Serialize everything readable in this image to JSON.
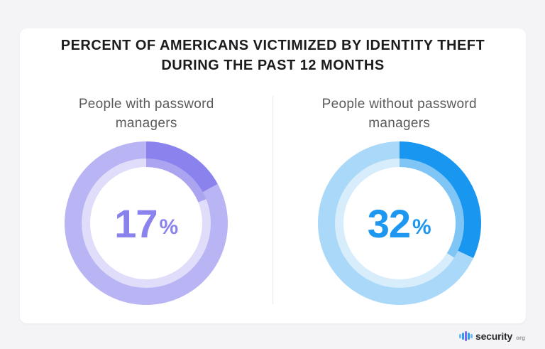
{
  "page": {
    "background_color": "#f4f4f6",
    "card_color": "#ffffff",
    "divider_color": "#e9e9eb"
  },
  "title": {
    "line1": "PERCENT OF AMERICANS VICTIMIZED BY IDENTITY THEFT",
    "line2": "DURING THE PAST 12 MONTHS"
  },
  "chart_data": {
    "type": "pie",
    "variant": "donut",
    "title": "PERCENT OF AMERICANS VICTIMIZED BY IDENTITY THEFT DURING THE PAST 12 MONTHS",
    "units": "%",
    "start_angle_deg": 0,
    "direction": "clockwise",
    "inner_highlight_extra_deg": 7,
    "legend_position": "none",
    "charts": [
      {
        "label": "People with password managers",
        "value": 17,
        "remainder": 83,
        "center_text": "17%",
        "colors": {
          "segment": "#8a83ed",
          "track": "#b9b4f3",
          "segment_inner": "#aba4f0",
          "track_inner": "#dfddfa",
          "value_text": "#8a83ed"
        }
      },
      {
        "label": "People without password managers",
        "value": 32,
        "remainder": 68,
        "center_text": "32%",
        "colors": {
          "segment": "#1996f0",
          "track": "#a9d8f8",
          "segment_inner": "#7fc5f6",
          "track_inner": "#d7edfc",
          "value_text": "#1e97f0"
        }
      }
    ]
  },
  "footer": {
    "brand": "security",
    "brand_suffix": "org",
    "icon": "equalizer-bars-icon",
    "icon_bars": [
      {
        "h": 6,
        "c": "#6db9f5"
      },
      {
        "h": 10,
        "c": "#2f9df2"
      },
      {
        "h": 14,
        "c": "#7a6def"
      },
      {
        "h": 10,
        "c": "#2f9df2"
      },
      {
        "h": 6,
        "c": "#6db9f5"
      }
    ]
  }
}
